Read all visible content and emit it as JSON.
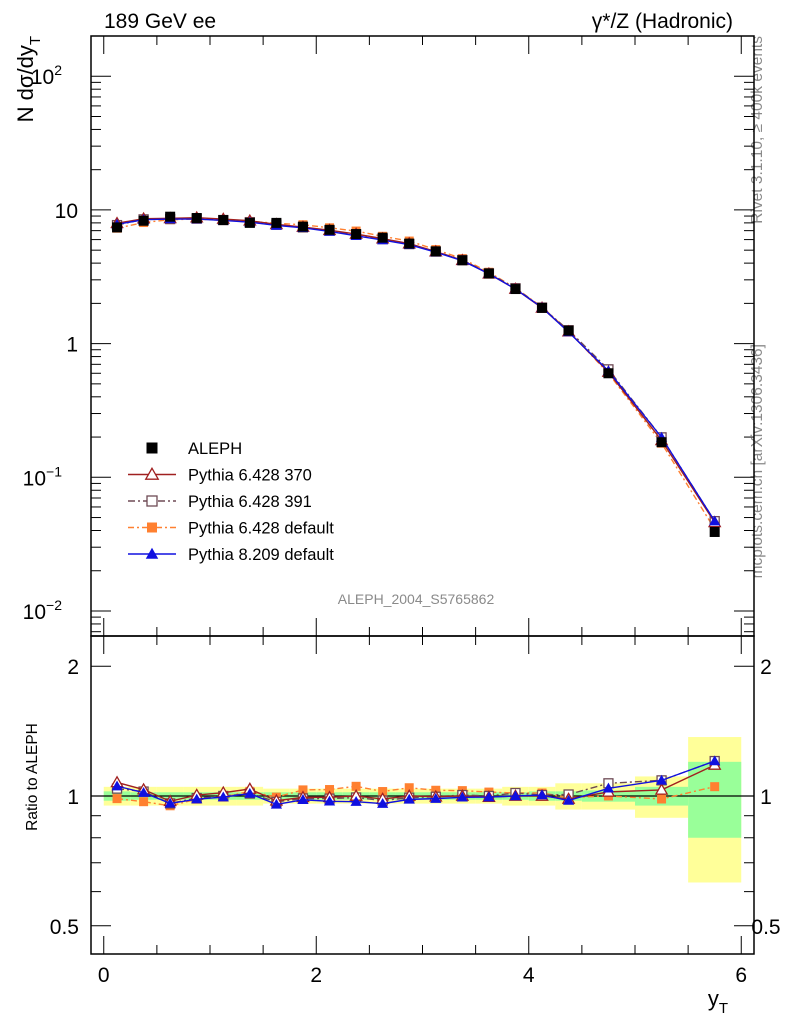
{
  "header": {
    "left": "189 GeV ee",
    "right": "γ*/Z (Hadronic)"
  },
  "side": {
    "top": "Rivet 3.1.10, ≥ 400k events",
    "bottom": "mcplots.cern.ch [arXiv:1306.3436]"
  },
  "watermark": "ALEPH_2004_S5765862",
  "chart_data": [
    {
      "type": "line",
      "ylabel": "N dσ/dy_T",
      "yscale": "log",
      "ylim": [
        0.0065,
        200
      ],
      "xlim": [
        -0.12,
        6.12
      ],
      "x_ticks": [
        "0",
        "2",
        "4",
        "6"
      ],
      "y_ticks": [
        {
          "v": 100,
          "base": "10",
          "exp": "2"
        },
        {
          "v": 10,
          "base": "10",
          "exp": ""
        },
        {
          "v": 1,
          "base": "1",
          "exp": ""
        },
        {
          "v": 0.1,
          "base": "10",
          "exp": "−1"
        },
        {
          "v": 0.01,
          "base": "10",
          "exp": "−2"
        }
      ],
      "x": [
        0.125,
        0.375,
        0.625,
        0.875,
        1.125,
        1.375,
        1.625,
        1.875,
        2.125,
        2.375,
        2.625,
        2.875,
        3.125,
        3.375,
        3.625,
        3.875,
        4.125,
        4.375,
        4.75,
        5.25,
        5.75
      ],
      "series": [
        {
          "name": "ALEPH",
          "color": "#000000",
          "marker": "square-filled",
          "dash": "",
          "values": [
            7.4,
            8.3,
            8.9,
            8.7,
            8.4,
            8.0,
            8.0,
            7.5,
            7.1,
            6.6,
            6.2,
            5.6,
            4.9,
            4.2,
            3.35,
            2.56,
            1.85,
            1.25,
            0.6,
            0.183,
            0.039
          ]
        },
        {
          "name": "Pythia 6.428 370",
          "color": "#a02020",
          "marker": "triangle-open",
          "dash": "",
          "values": [
            7.95,
            8.6,
            8.65,
            8.75,
            8.55,
            8.3,
            7.8,
            7.45,
            7.05,
            6.6,
            6.1,
            5.6,
            4.88,
            4.2,
            3.33,
            2.56,
            1.85,
            1.23,
            0.613,
            0.189,
            0.046
          ]
        },
        {
          "name": "Pythia 6.428 391",
          "color": "#6e4a55",
          "marker": "square-open",
          "dash": "7,3,2,3",
          "values": [
            7.7,
            8.5,
            8.55,
            8.6,
            8.4,
            8.1,
            7.75,
            7.4,
            7.0,
            6.55,
            6.05,
            5.55,
            4.88,
            4.22,
            3.35,
            2.6,
            1.86,
            1.26,
            0.642,
            0.199,
            0.047
          ]
        },
        {
          "name": "Pythia 6.428 default",
          "color": "#ff8030",
          "marker": "square-filled",
          "dash": "6,3,2,3",
          "values": [
            7.3,
            8.05,
            8.45,
            8.55,
            8.35,
            8.2,
            7.95,
            7.75,
            7.35,
            6.95,
            6.35,
            5.85,
            5.05,
            4.32,
            3.42,
            2.6,
            1.88,
            1.24,
            0.6,
            0.18,
            0.041
          ]
        },
        {
          "name": "Pythia 8.209 default",
          "color": "#1010e0",
          "marker": "triangle-filled",
          "dash": "",
          "values": [
            7.8,
            8.45,
            8.55,
            8.55,
            8.35,
            8.1,
            7.65,
            7.35,
            6.9,
            6.4,
            5.95,
            5.5,
            4.83,
            4.17,
            3.33,
            2.56,
            1.86,
            1.22,
            0.625,
            0.199,
            0.047
          ]
        }
      ],
      "legend_position": "lower-left"
    },
    {
      "type": "line",
      "ylabel": "Ratio to ALEPH",
      "yscale": "log",
      "ylim": [
        0.43,
        2.35
      ],
      "xlabel": "y_T",
      "x_ticks": [
        "0",
        "2",
        "4",
        "6"
      ],
      "y_ticks": [
        "0.5",
        "1",
        "2"
      ],
      "bins": [
        [
          0,
          0.25
        ],
        [
          0.25,
          0.5
        ],
        [
          0.5,
          0.75
        ],
        [
          0.75,
          1.0
        ],
        [
          1.0,
          1.25
        ],
        [
          1.25,
          1.5
        ],
        [
          1.5,
          1.75
        ],
        [
          1.75,
          2.0
        ],
        [
          2.0,
          2.25
        ],
        [
          2.25,
          2.5
        ],
        [
          2.5,
          2.75
        ],
        [
          2.75,
          3.0
        ],
        [
          3.0,
          3.25
        ],
        [
          3.25,
          3.5
        ],
        [
          3.5,
          3.75
        ],
        [
          3.75,
          4.0
        ],
        [
          4.0,
          4.25
        ],
        [
          4.25,
          4.5
        ],
        [
          4.5,
          5.0
        ],
        [
          5.0,
          5.5
        ],
        [
          5.5,
          6.0
        ]
      ],
      "band_stat": [
        0.025,
        0.02,
        0.02,
        0.02,
        0.02,
        0.02,
        0.02,
        0.02,
        0.02,
        0.02,
        0.02,
        0.02,
        0.02,
        0.02,
        0.02,
        0.02,
        0.025,
        0.025,
        0.03,
        0.05,
        0.2
      ],
      "band_total": [
        0.05,
        0.05,
        0.05,
        0.05,
        0.05,
        0.05,
        0.04,
        0.04,
        0.04,
        0.04,
        0.04,
        0.04,
        0.04,
        0.04,
        0.04,
        0.05,
        0.05,
        0.07,
        0.07,
        0.11,
        0.37
      ],
      "ratios": {
        "Pythia 6.428 370": [
          1.075,
          1.035,
          0.972,
          1.005,
          1.018,
          1.038,
          0.975,
          0.993,
          0.993,
          1.0,
          0.984,
          1.0,
          0.996,
          1.0,
          0.994,
          1.0,
          1.0,
          0.984,
          1.022,
          1.033,
          1.18
        ],
        "Pythia 6.428 391": [
          1.04,
          1.024,
          0.961,
          0.989,
          1.0,
          1.013,
          0.969,
          0.987,
          0.986,
          0.992,
          0.976,
          0.991,
          0.996,
          1.005,
          1.0,
          1.016,
          1.005,
          1.008,
          1.07,
          1.087,
          1.205
        ],
        "Pythia 6.428 default": [
          0.986,
          0.97,
          0.949,
          0.983,
          0.994,
          1.025,
          0.994,
          1.033,
          1.035,
          1.053,
          1.024,
          1.045,
          1.031,
          1.029,
          1.021,
          1.016,
          1.016,
          0.992,
          1.0,
          0.984,
          1.051
        ],
        "Pythia 8.209 default": [
          1.054,
          1.018,
          0.961,
          0.983,
          0.994,
          1.013,
          0.956,
          0.98,
          0.972,
          0.97,
          0.96,
          0.982,
          0.986,
          0.993,
          0.994,
          1.0,
          1.005,
          0.976,
          1.042,
          1.087,
          1.205
        ]
      }
    }
  ]
}
